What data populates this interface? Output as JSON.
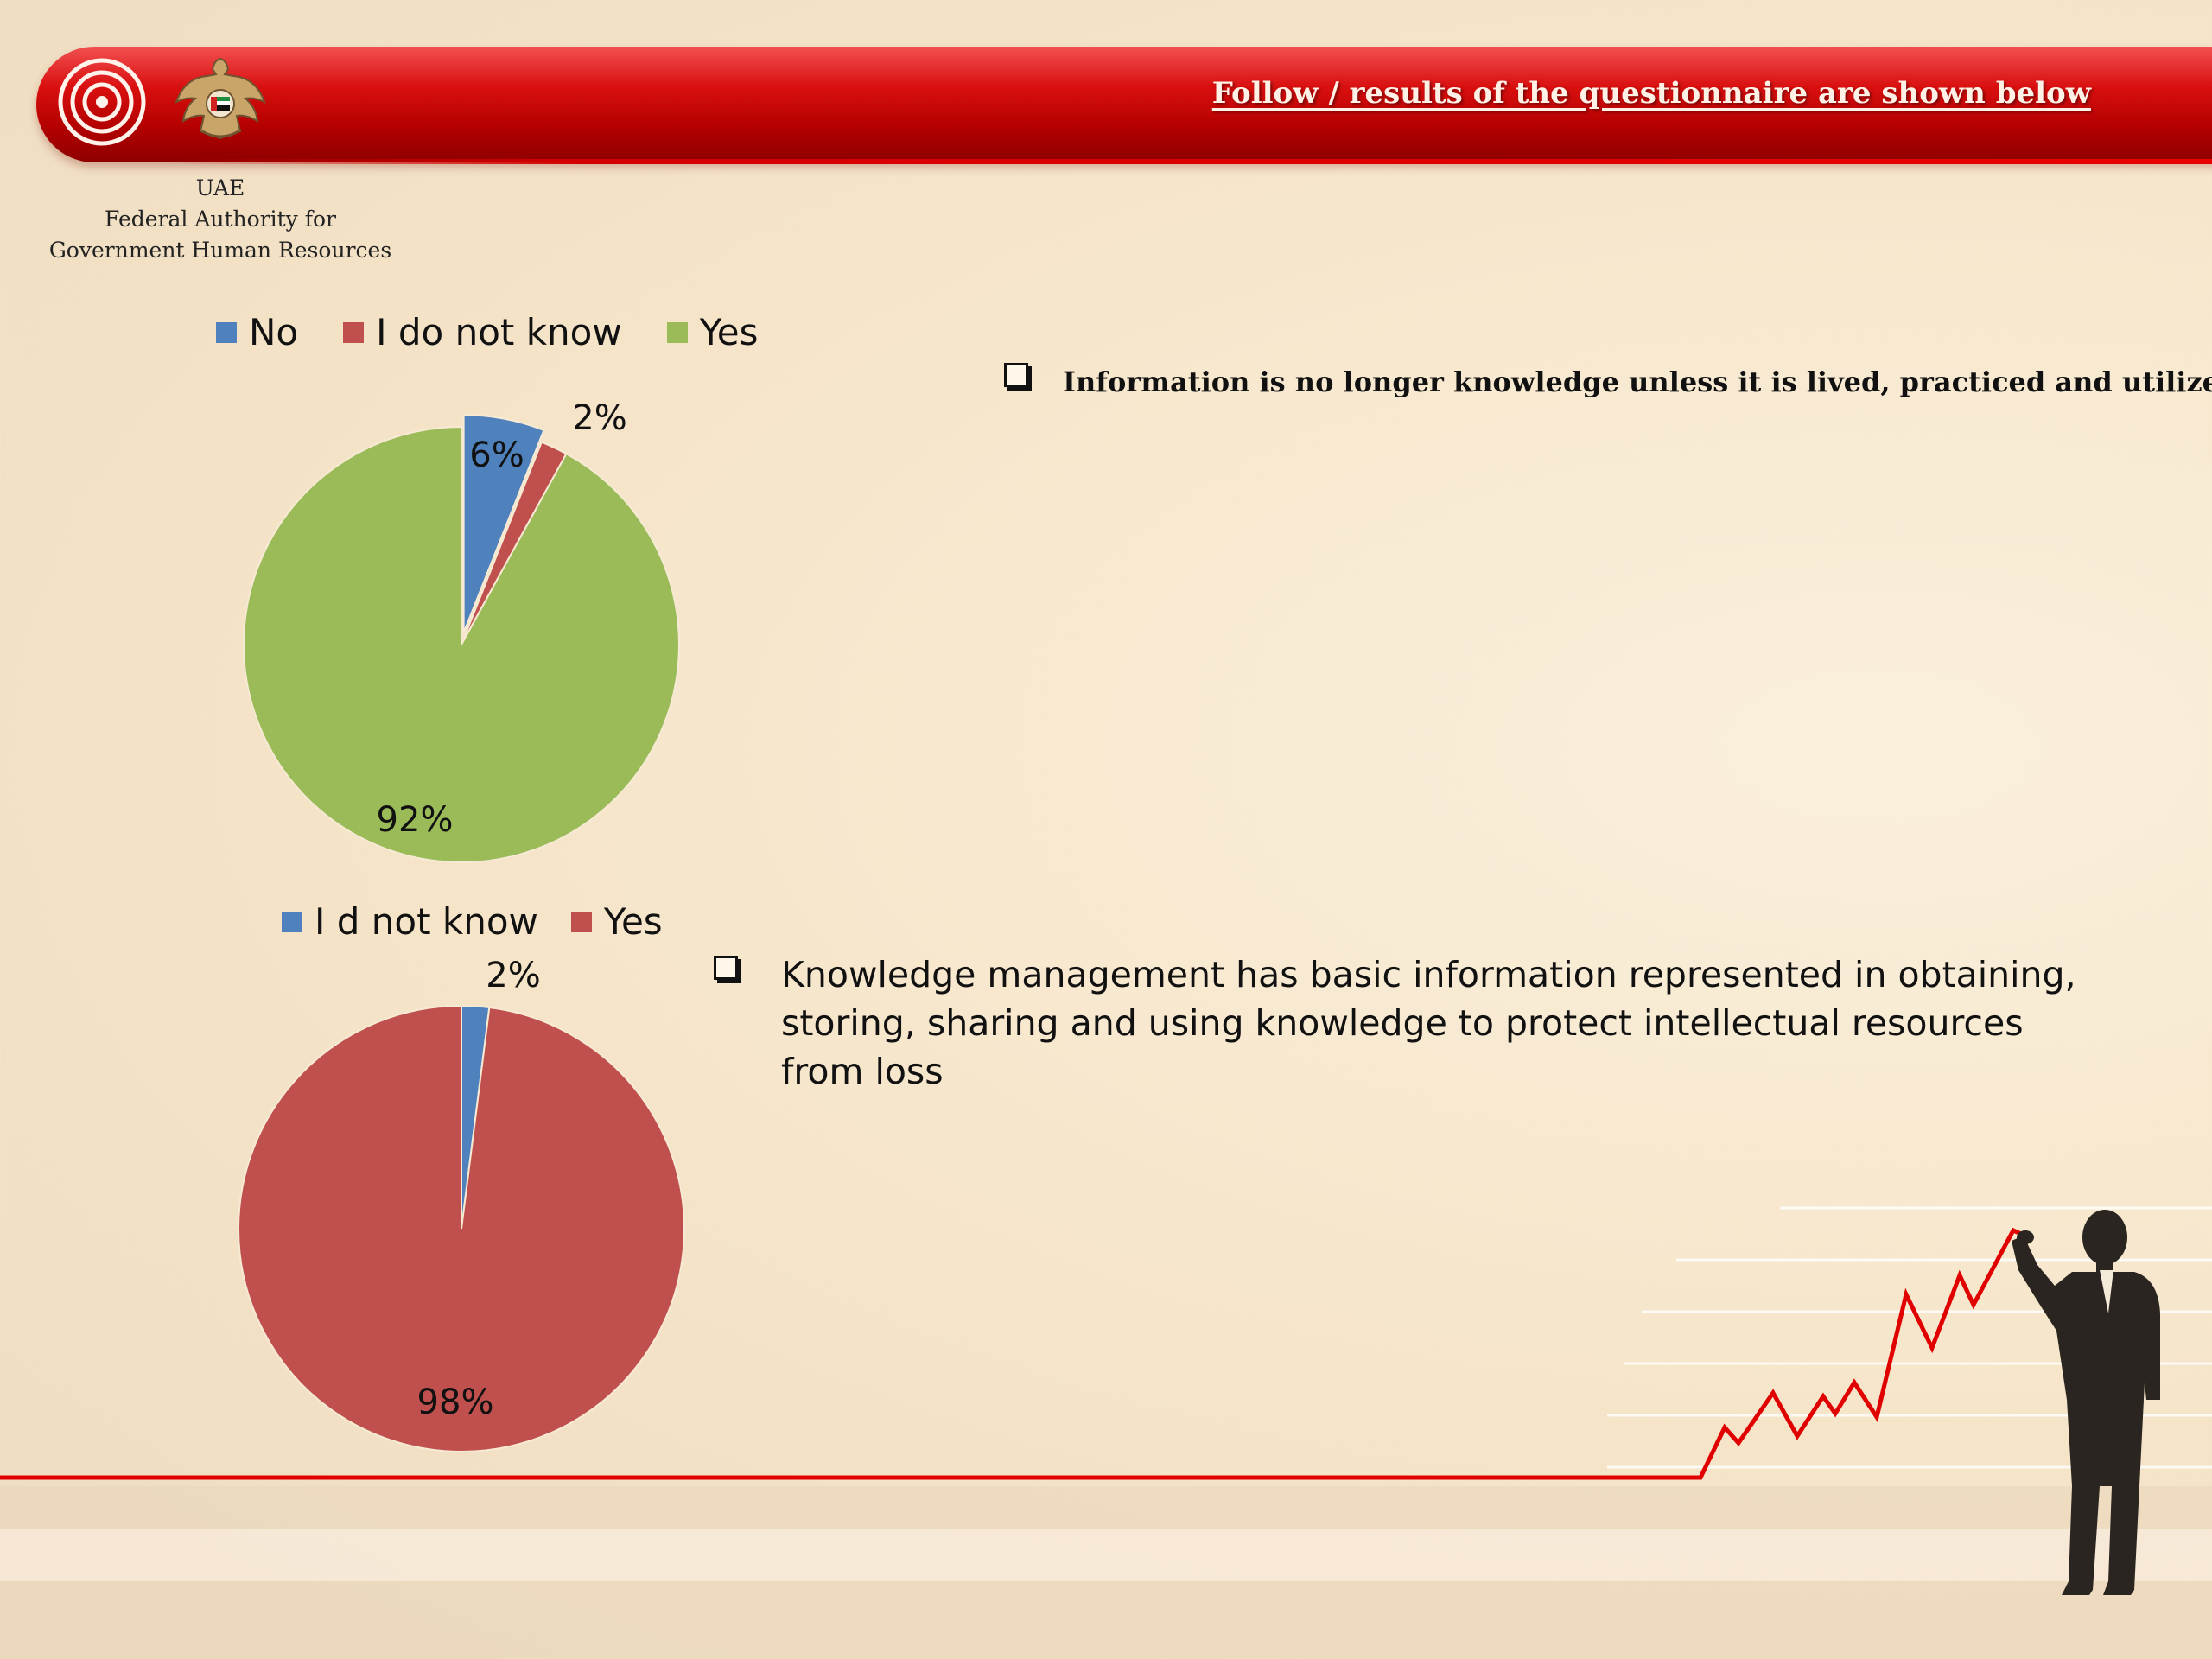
{
  "header": {
    "title": "Follow / results of the questionnaire are shown below"
  },
  "organization": {
    "caption_lines": [
      "UAE",
      "Federal Authority for",
      "Government Human Resources"
    ]
  },
  "colors": {
    "blue": "#4f81bd",
    "red": "#c0504d",
    "green": "#9bbb59",
    "banner_red": "#c00000"
  },
  "icons": [
    "target-rings-logo",
    "falcon-emblem",
    "businessman-silhouette",
    "rising-red-line"
  ],
  "chart_data": [
    {
      "type": "pie",
      "title": "",
      "series": [
        {
          "name": "No",
          "value": 6,
          "label": "6%",
          "color": "#4f81bd"
        },
        {
          "name": "I do not know",
          "value": 2,
          "label": "2%",
          "color": "#c0504d"
        },
        {
          "name": "Yes",
          "value": 92,
          "label": "92%",
          "color": "#9bbb59"
        }
      ],
      "legend_position": "top"
    },
    {
      "type": "pie",
      "title": "",
      "series": [
        {
          "name": "I d not know",
          "value": 2,
          "label": "2%",
          "color": "#4f81bd"
        },
        {
          "name": "Yes",
          "value": 98,
          "label": "98%",
          "color": "#c0504d"
        }
      ],
      "legend_position": "top"
    }
  ],
  "bullets": [
    {
      "text": "Information is no longer knowledge unless it is lived, practiced and utilized"
    },
    {
      "text": "Knowledge management has basic information represented in obtaining, storing, sharing and using knowledge to protect intellectual resources from loss"
    }
  ]
}
